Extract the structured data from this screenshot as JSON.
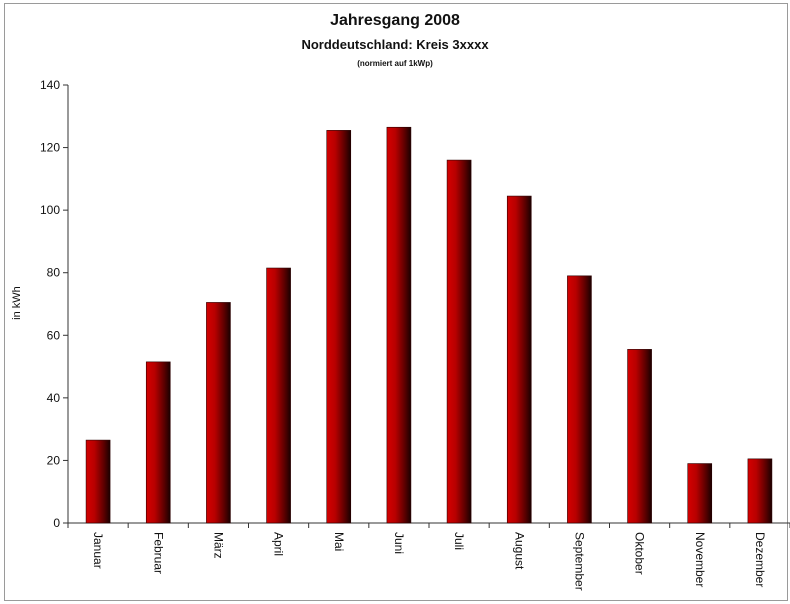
{
  "chart_data": {
    "type": "bar",
    "title": "Jahresgang 2008",
    "subtitle": "Norddeutschland: Kreis 3xxxx",
    "note": "(normiert auf 1kWp)",
    "xlabel": "",
    "ylabel": "in kWh",
    "ylim": [
      0,
      140
    ],
    "yticks": [
      0,
      20,
      40,
      60,
      80,
      100,
      120,
      140
    ],
    "categories": [
      "Januar",
      "Februar",
      "März",
      "April",
      "Mai",
      "Juni",
      "Juli",
      "August",
      "September",
      "Oktober",
      "November",
      "Dezember"
    ],
    "values": [
      26.5,
      51.5,
      70.5,
      81.5,
      125.5,
      126.5,
      116,
      104.5,
      79,
      55.5,
      19,
      20.5
    ],
    "grid": false,
    "legend": "none",
    "bar_color": "#a00000"
  }
}
